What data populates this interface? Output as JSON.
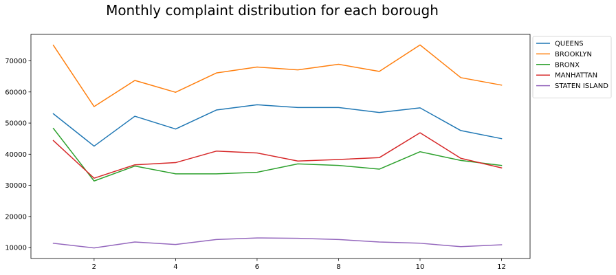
{
  "chart_data": {
    "type": "line",
    "title": "Monthly complaint distribution for each borough",
    "xlabel": "",
    "ylabel": "",
    "x": [
      1,
      2,
      3,
      4,
      5,
      6,
      7,
      8,
      9,
      10,
      11,
      12
    ],
    "xticks": [
      2,
      4,
      6,
      8,
      10,
      12
    ],
    "yticks": [
      10000,
      20000,
      30000,
      40000,
      50000,
      60000,
      70000
    ],
    "xlim": [
      0.45,
      12.7
    ],
    "ylim": [
      6500,
      78500
    ],
    "grid": false,
    "legend_position": "outside-right-top",
    "series": [
      {
        "name": "QUEENS",
        "color": "#1f77b4",
        "values": [
          53000,
          42600,
          52200,
          48100,
          54200,
          55900,
          55000,
          55000,
          53400,
          54900,
          47600,
          45000
        ]
      },
      {
        "name": "BROOKLYN",
        "color": "#ff7f0e",
        "values": [
          75000,
          55300,
          63700,
          59900,
          66100,
          68000,
          67100,
          68900,
          66600,
          75100,
          64600,
          62200
        ]
      },
      {
        "name": "BRONX",
        "color": "#2ca02c",
        "values": [
          48300,
          31400,
          36200,
          33700,
          33700,
          34200,
          36900,
          36400,
          35200,
          40800,
          38000,
          36400
        ]
      },
      {
        "name": "MANHATTAN",
        "color": "#d62728",
        "values": [
          44400,
          32300,
          36600,
          37300,
          41000,
          40400,
          37800,
          38300,
          38900,
          46900,
          38700,
          35600
        ]
      },
      {
        "name": "STATEN ISLAND",
        "color": "#9467bd",
        "values": [
          11400,
          9900,
          11800,
          11000,
          12600,
          13100,
          13000,
          12600,
          11800,
          11400,
          10300,
          10900
        ]
      }
    ]
  }
}
